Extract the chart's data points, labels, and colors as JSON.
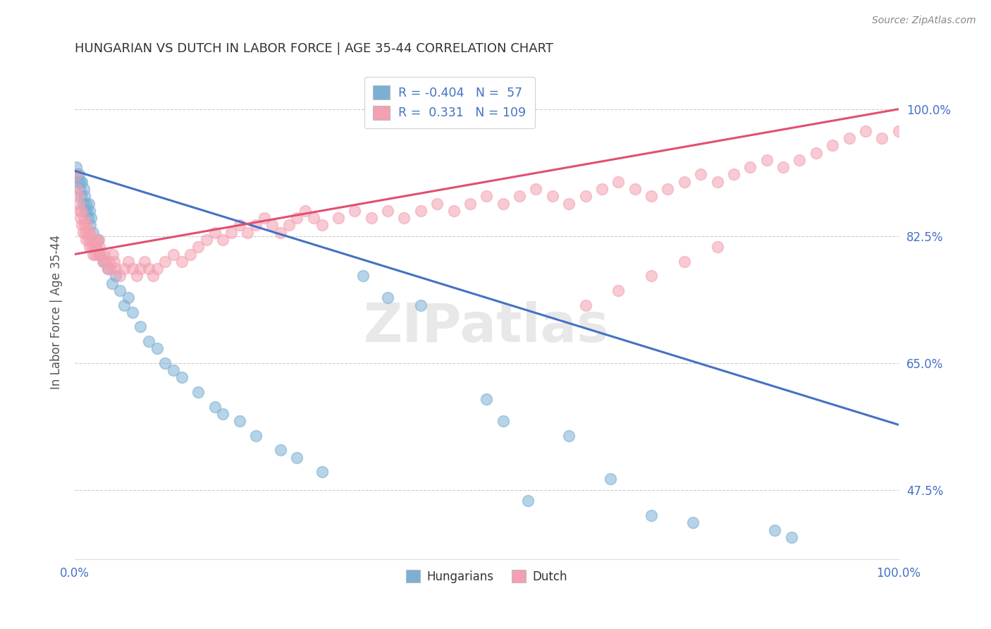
{
  "title": "HUNGARIAN VS DUTCH IN LABOR FORCE | AGE 35-44 CORRELATION CHART",
  "source_text": "Source: ZipAtlas.com",
  "ylabel": "In Labor Force | Age 35-44",
  "watermark": "ZIPatlas",
  "legend_blue_r": "R = -0.404",
  "legend_blue_n": "N =  57",
  "legend_pink_r": "R =  0.331",
  "legend_pink_n": "N = 109",
  "blue_color": "#7BAFD4",
  "pink_color": "#F4A0B0",
  "blue_line_color": "#4472C4",
  "pink_line_color": "#E05070",
  "background_color": "#FFFFFF",
  "grid_color": "#CCCCCC",
  "title_color": "#333333",
  "axis_label_color": "#4472C4",
  "blue_line_x0": 0.0,
  "blue_line_y0": 0.915,
  "blue_line_x1": 1.0,
  "blue_line_y1": 0.565,
  "pink_line_x0": 0.0,
  "pink_line_y0": 0.8,
  "pink_line_x1": 1.0,
  "pink_line_y1": 1.0,
  "ylim_low": 0.38,
  "ylim_high": 1.06,
  "xlim_low": 0.0,
  "xlim_high": 1.0,
  "ytick_vals": [
    0.475,
    0.65,
    0.825,
    1.0
  ],
  "ytick_labels": [
    "47.5%",
    "65.0%",
    "82.5%",
    "100.0%"
  ],
  "hun_x": [
    0.002,
    0.003,
    0.004,
    0.005,
    0.006,
    0.007,
    0.008,
    0.009,
    0.01,
    0.011,
    0.012,
    0.013,
    0.014,
    0.015,
    0.016,
    0.017,
    0.018,
    0.019,
    0.02,
    0.022,
    0.025,
    0.028,
    0.03,
    0.035,
    0.04,
    0.045,
    0.05,
    0.055,
    0.06,
    0.065,
    0.07,
    0.08,
    0.09,
    0.1,
    0.11,
    0.12,
    0.13,
    0.15,
    0.17,
    0.18,
    0.2,
    0.22,
    0.25,
    0.27,
    0.3,
    0.35,
    0.38,
    0.42,
    0.5,
    0.52,
    0.55,
    0.6,
    0.65,
    0.7,
    0.75,
    0.85,
    0.87
  ],
  "hun_y": [
    0.92,
    0.91,
    0.9,
    0.91,
    0.89,
    0.9,
    0.88,
    0.9,
    0.87,
    0.89,
    0.88,
    0.86,
    0.87,
    0.86,
    0.85,
    0.87,
    0.86,
    0.84,
    0.85,
    0.83,
    0.81,
    0.82,
    0.8,
    0.79,
    0.78,
    0.76,
    0.77,
    0.75,
    0.73,
    0.74,
    0.72,
    0.7,
    0.68,
    0.67,
    0.65,
    0.64,
    0.63,
    0.61,
    0.59,
    0.58,
    0.57,
    0.55,
    0.53,
    0.52,
    0.5,
    0.77,
    0.74,
    0.73,
    0.6,
    0.57,
    0.46,
    0.55,
    0.49,
    0.44,
    0.43,
    0.42,
    0.41
  ],
  "dutch_x": [
    0.002,
    0.003,
    0.004,
    0.005,
    0.006,
    0.007,
    0.008,
    0.009,
    0.01,
    0.011,
    0.012,
    0.013,
    0.014,
    0.015,
    0.016,
    0.017,
    0.018,
    0.019,
    0.02,
    0.021,
    0.022,
    0.023,
    0.024,
    0.025,
    0.026,
    0.027,
    0.028,
    0.029,
    0.03,
    0.032,
    0.034,
    0.036,
    0.038,
    0.04,
    0.042,
    0.044,
    0.046,
    0.048,
    0.05,
    0.055,
    0.06,
    0.065,
    0.07,
    0.075,
    0.08,
    0.085,
    0.09,
    0.095,
    0.1,
    0.11,
    0.12,
    0.13,
    0.14,
    0.15,
    0.16,
    0.17,
    0.18,
    0.19,
    0.2,
    0.21,
    0.22,
    0.23,
    0.24,
    0.25,
    0.26,
    0.27,
    0.28,
    0.29,
    0.3,
    0.32,
    0.34,
    0.36,
    0.38,
    0.4,
    0.42,
    0.44,
    0.46,
    0.48,
    0.5,
    0.52,
    0.54,
    0.56,
    0.58,
    0.6,
    0.62,
    0.64,
    0.66,
    0.68,
    0.7,
    0.72,
    0.74,
    0.76,
    0.78,
    0.8,
    0.82,
    0.84,
    0.86,
    0.88,
    0.9,
    0.92,
    0.94,
    0.96,
    0.98,
    1.0,
    0.62,
    0.66,
    0.7,
    0.74,
    0.78
  ],
  "dutch_y": [
    0.91,
    0.89,
    0.88,
    0.87,
    0.86,
    0.85,
    0.86,
    0.84,
    0.83,
    0.85,
    0.84,
    0.83,
    0.82,
    0.84,
    0.83,
    0.82,
    0.81,
    0.83,
    0.82,
    0.81,
    0.8,
    0.82,
    0.81,
    0.8,
    0.82,
    0.81,
    0.8,
    0.82,
    0.81,
    0.8,
    0.79,
    0.8,
    0.79,
    0.78,
    0.79,
    0.78,
    0.8,
    0.79,
    0.78,
    0.77,
    0.78,
    0.79,
    0.78,
    0.77,
    0.78,
    0.79,
    0.78,
    0.77,
    0.78,
    0.79,
    0.8,
    0.79,
    0.8,
    0.81,
    0.82,
    0.83,
    0.82,
    0.83,
    0.84,
    0.83,
    0.84,
    0.85,
    0.84,
    0.83,
    0.84,
    0.85,
    0.86,
    0.85,
    0.84,
    0.85,
    0.86,
    0.85,
    0.86,
    0.85,
    0.86,
    0.87,
    0.86,
    0.87,
    0.88,
    0.87,
    0.88,
    0.89,
    0.88,
    0.87,
    0.88,
    0.89,
    0.9,
    0.89,
    0.88,
    0.89,
    0.9,
    0.91,
    0.9,
    0.91,
    0.92,
    0.93,
    0.92,
    0.93,
    0.94,
    0.95,
    0.96,
    0.97,
    0.96,
    0.97,
    0.73,
    0.75,
    0.77,
    0.79,
    0.81
  ]
}
